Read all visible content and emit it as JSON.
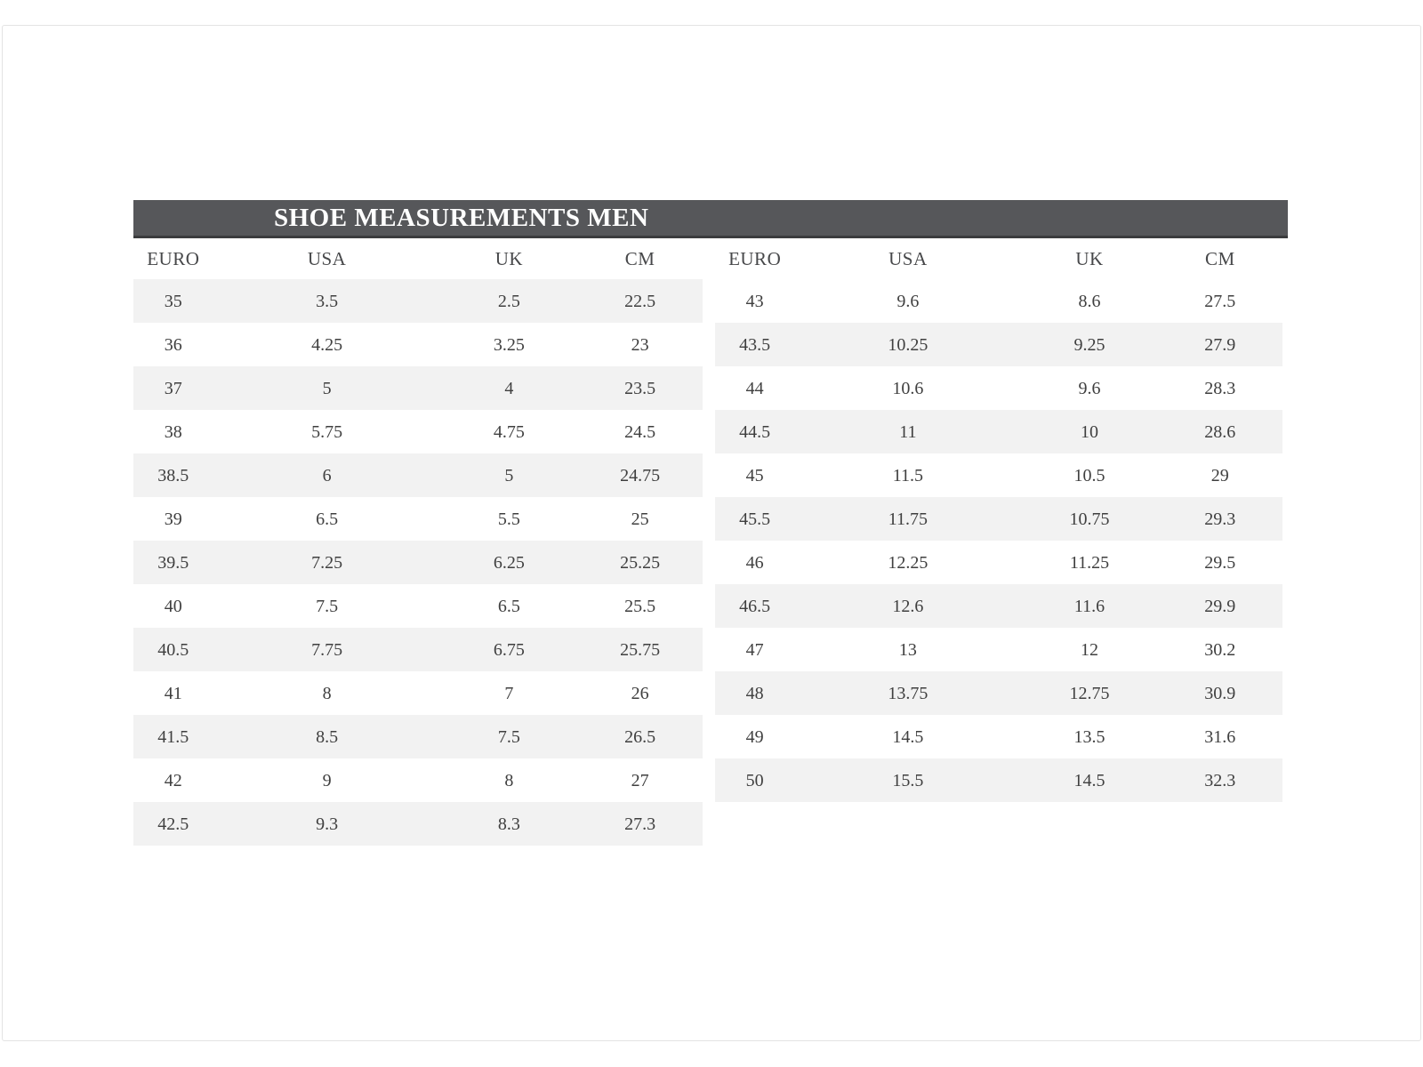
{
  "title": "SHOE MEASUREMENTS MEN",
  "columns": [
    "EURO",
    "USA",
    "UK",
    "CM"
  ],
  "left_table": {
    "first_row_shaded": true,
    "rows": [
      [
        "35",
        "3.5",
        "2.5",
        "22.5"
      ],
      [
        "36",
        "4.25",
        "3.25",
        "23"
      ],
      [
        "37",
        "5",
        "4",
        "23.5"
      ],
      [
        "38",
        "5.75",
        "4.75",
        "24.5"
      ],
      [
        "38.5",
        "6",
        "5",
        "24.75"
      ],
      [
        "39",
        "6.5",
        "5.5",
        "25"
      ],
      [
        "39.5",
        "7.25",
        "6.25",
        "25.25"
      ],
      [
        "40",
        "7.5",
        "6.5",
        "25.5"
      ],
      [
        "40.5",
        "7.75",
        "6.75",
        "25.75"
      ],
      [
        "41",
        "8",
        "7",
        "26"
      ],
      [
        "41.5",
        "8.5",
        "7.5",
        "26.5"
      ],
      [
        "42",
        "9",
        "8",
        "27"
      ],
      [
        "42.5",
        "9.3",
        "8.3",
        "27.3"
      ]
    ]
  },
  "right_table": {
    "first_row_shaded": false,
    "rows": [
      [
        "43",
        "9.6",
        "8.6",
        "27.5"
      ],
      [
        "43.5",
        "10.25",
        "9.25",
        "27.9"
      ],
      [
        "44",
        "10.6",
        "9.6",
        "28.3"
      ],
      [
        "44.5",
        "11",
        "10",
        "28.6"
      ],
      [
        "45",
        "11.5",
        "10.5",
        "29"
      ],
      [
        "45.5",
        "11.75",
        "10.75",
        "29.3"
      ],
      [
        "46",
        "12.25",
        "11.25",
        "29.5"
      ],
      [
        "46.5",
        "12.6",
        "11.6",
        "29.9"
      ],
      [
        "47",
        "13",
        "12",
        "30.2"
      ],
      [
        "48",
        "13.75",
        "12.75",
        "30.9"
      ],
      [
        "49",
        "14.5",
        "13.5",
        "31.6"
      ],
      [
        "50",
        "15.5",
        "14.5",
        "32.3"
      ]
    ]
  },
  "colors": {
    "header_bar": "#56575a",
    "header_bar_border": "#3b3c3e",
    "row_shade": "#f2f2f2",
    "text": "#3f3f3f",
    "title_text": "#ffffff",
    "frame_border": "#e3e3e3",
    "background": "#ffffff"
  }
}
